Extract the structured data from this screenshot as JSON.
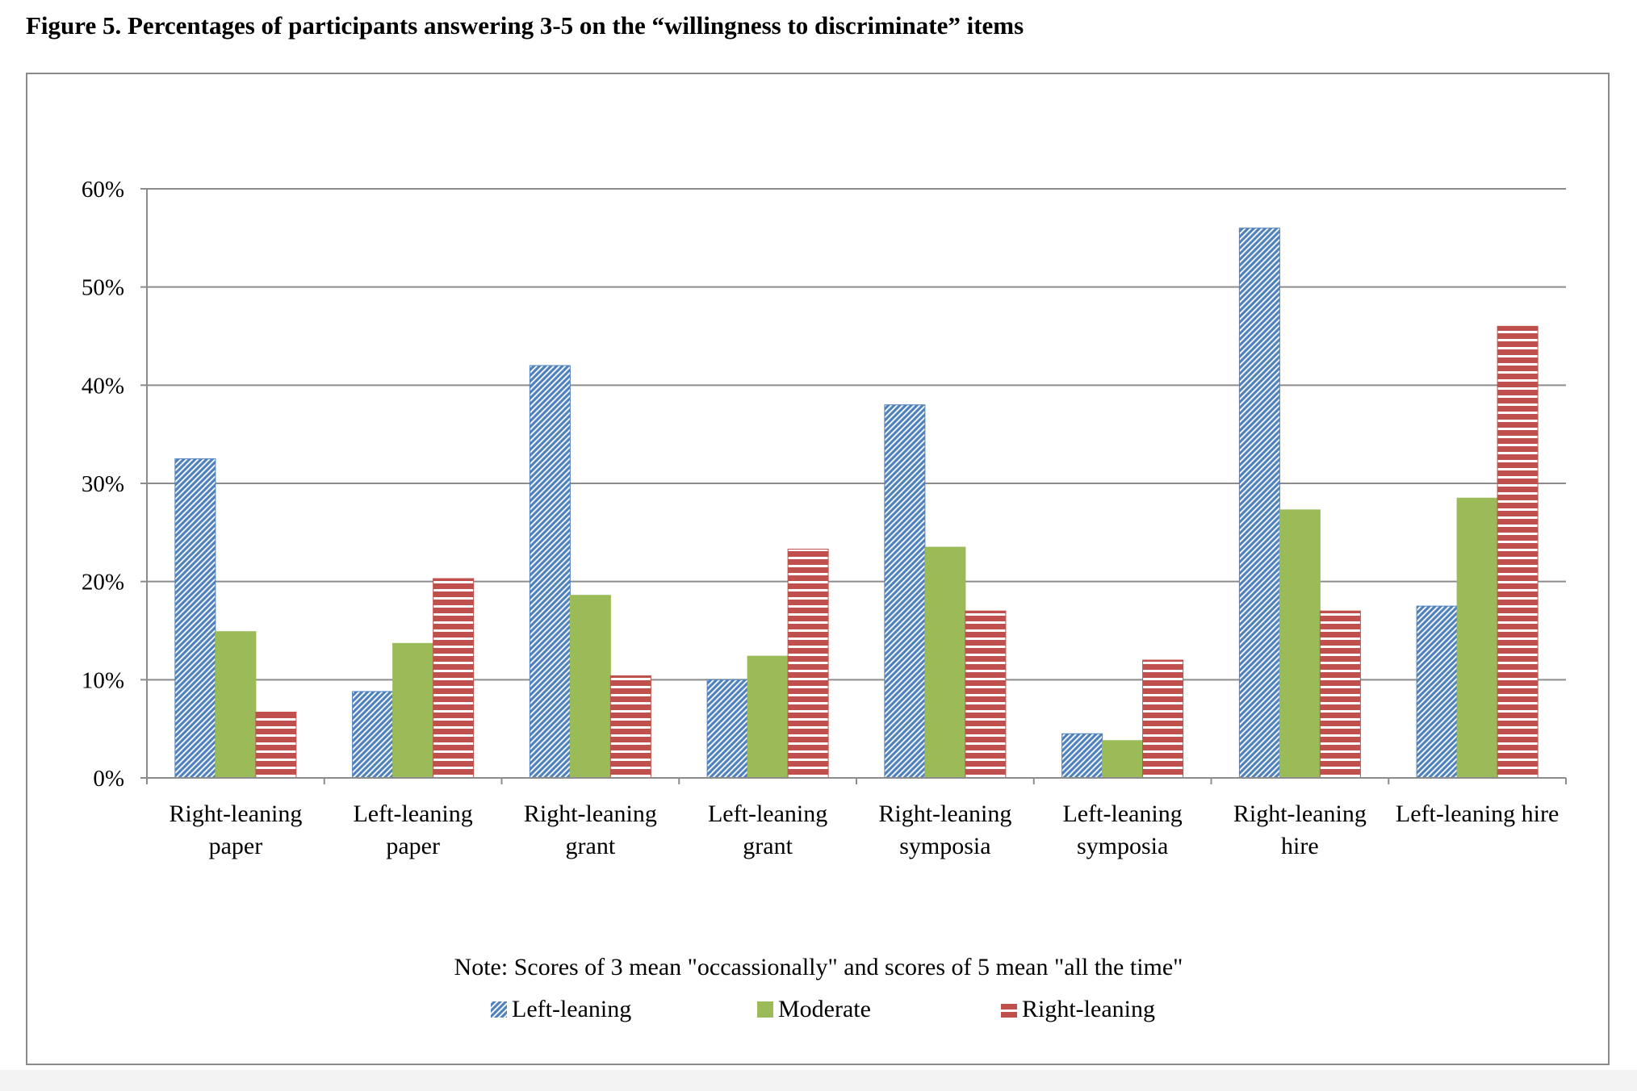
{
  "figure_title": "Figure 5. Percentages of participants answering 3-5 on the “willingness to discriminate” items",
  "note": "Note: Scores of 3 mean \"occassionally\" and scores of 5 mean \"all the time\"",
  "colors": {
    "left_leaning": "#4f81bd",
    "moderate": "#9bbb59",
    "right_leaning": "#c0504d",
    "gridline": "#8c8c8c",
    "frame": "#8a8a8a"
  },
  "chart_data": {
    "type": "bar",
    "title": "",
    "xlabel": "",
    "ylabel": "",
    "ylim": [
      0,
      60
    ],
    "yticks": [
      "0%",
      "10%",
      "20%",
      "30%",
      "40%",
      "50%",
      "60%"
    ],
    "ytick_values": [
      0,
      10,
      20,
      30,
      40,
      50,
      60
    ],
    "grid": true,
    "legend_position": "bottom",
    "categories": [
      [
        "Right-leaning",
        "paper"
      ],
      [
        "Left-leaning",
        "paper"
      ],
      [
        "Right-leaning",
        "grant"
      ],
      [
        "Left-leaning",
        "grant"
      ],
      [
        "Right-leaning",
        "symposia"
      ],
      [
        "Left-leaning",
        "symposia"
      ],
      [
        "Right-leaning",
        "hire"
      ],
      [
        "Left-leaning hire"
      ]
    ],
    "series": [
      {
        "name": "Left-leaning",
        "pattern": "diagonal",
        "values": [
          32.5,
          8.8,
          42.0,
          10.0,
          38.0,
          4.5,
          56.0,
          17.5
        ]
      },
      {
        "name": "Moderate",
        "pattern": "solid",
        "values": [
          14.9,
          13.7,
          18.6,
          12.4,
          23.5,
          3.8,
          27.3,
          28.5
        ]
      },
      {
        "name": "Right-leaning",
        "pattern": "horizontal",
        "values": [
          6.7,
          20.3,
          10.4,
          23.3,
          17.0,
          12.0,
          17.0,
          46.0
        ]
      }
    ]
  }
}
